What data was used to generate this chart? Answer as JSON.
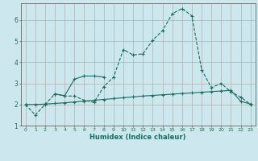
{
  "xlabel": "Humidex (Indice chaleur)",
  "background_color": "#cce8ee",
  "grid_color": "#b0b0b0",
  "line_color": "#1a6b5e",
  "xlim": [
    -0.5,
    23.5
  ],
  "ylim": [
    1,
    6.8
  ],
  "yticks": [
    1,
    2,
    3,
    4,
    5,
    6
  ],
  "xticks": [
    0,
    1,
    2,
    3,
    4,
    5,
    6,
    7,
    8,
    9,
    10,
    11,
    12,
    13,
    14,
    15,
    16,
    17,
    18,
    19,
    20,
    21,
    22,
    23
  ],
  "series1_x": [
    0,
    1,
    2,
    3,
    4,
    5,
    6,
    7,
    8,
    9,
    10,
    11,
    12,
    13,
    14,
    15,
    16,
    17,
    18,
    19,
    20,
    21,
    22,
    23
  ],
  "series1_y": [
    2.0,
    1.5,
    2.0,
    2.5,
    2.4,
    2.4,
    2.2,
    2.1,
    2.85,
    3.3,
    4.6,
    4.35,
    4.4,
    5.05,
    5.5,
    6.3,
    6.55,
    6.2,
    3.65,
    2.8,
    3.0,
    2.6,
    2.35,
    2.0
  ],
  "series2_x": [
    0,
    1,
    2,
    3,
    4,
    5,
    6,
    7,
    8,
    9,
    10,
    11,
    12,
    13,
    14,
    15,
    16,
    17,
    18,
    19,
    20,
    21,
    22,
    23
  ],
  "series2_y": [
    2.0,
    2.0,
    2.02,
    2.05,
    2.08,
    2.12,
    2.16,
    2.2,
    2.24,
    2.28,
    2.32,
    2.36,
    2.4,
    2.43,
    2.46,
    2.49,
    2.52,
    2.55,
    2.58,
    2.61,
    2.64,
    2.67,
    2.15,
    2.02
  ],
  "series3_x": [
    3,
    4,
    5,
    6,
    7,
    8
  ],
  "series3_y": [
    2.5,
    2.42,
    3.2,
    3.35,
    3.35,
    3.3
  ]
}
